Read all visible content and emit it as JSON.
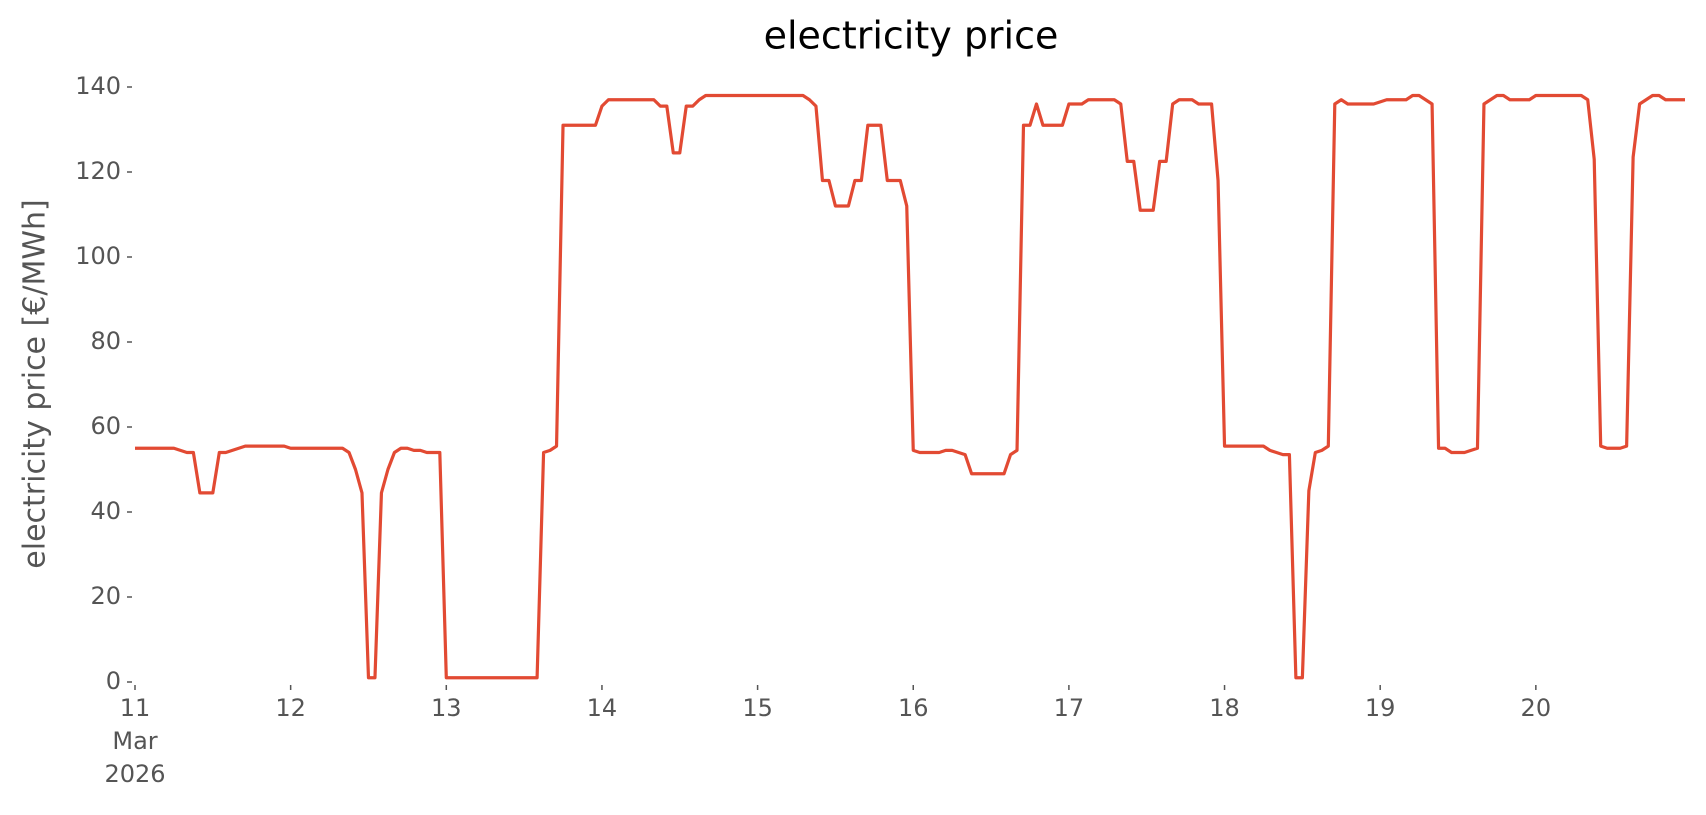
{
  "chart_data": {
    "type": "line",
    "title": "electricity price",
    "y_label": "electricity price [€/MWh]",
    "x": [
      11,
      11.0417,
      11.0833,
      11.125,
      11.1667,
      11.2083,
      11.25,
      11.2917,
      11.3333,
      11.375,
      11.4167,
      11.4583,
      11.5,
      11.5417,
      11.5833,
      11.625,
      11.6667,
      11.7083,
      11.75,
      11.7917,
      11.8333,
      11.875,
      11.9167,
      11.9583,
      12,
      12.0417,
      12.0833,
      12.125,
      12.1667,
      12.2083,
      12.25,
      12.2917,
      12.3333,
      12.375,
      12.4167,
      12.4583,
      12.5,
      12.5417,
      12.5833,
      12.625,
      12.6667,
      12.7083,
      12.75,
      12.7917,
      12.8333,
      12.875,
      12.9167,
      12.9583,
      13,
      13.0417,
      13.0833,
      13.125,
      13.1667,
      13.2083,
      13.25,
      13.2917,
      13.3333,
      13.375,
      13.4167,
      13.4583,
      13.5,
      13.5417,
      13.5833,
      13.625,
      13.6667,
      13.7083,
      13.75,
      13.7917,
      13.8333,
      13.875,
      13.9167,
      13.9583,
      14,
      14.0417,
      14.0833,
      14.125,
      14.1667,
      14.2083,
      14.25,
      14.2917,
      14.3333,
      14.375,
      14.4167,
      14.4583,
      14.5,
      14.5417,
      14.5833,
      14.625,
      14.6667,
      14.7083,
      14.75,
      14.7917,
      14.8333,
      14.875,
      14.9167,
      14.9583,
      15,
      15.0417,
      15.0833,
      15.125,
      15.1667,
      15.2083,
      15.25,
      15.2917,
      15.3333,
      15.375,
      15.4167,
      15.4583,
      15.5,
      15.5417,
      15.5833,
      15.625,
      15.6667,
      15.7083,
      15.75,
      15.7917,
      15.8333,
      15.875,
      15.9167,
      15.9583,
      16,
      16.0417,
      16.0833,
      16.125,
      16.1667,
      16.2083,
      16.25,
      16.2917,
      16.3333,
      16.375,
      16.4167,
      16.4583,
      16.5,
      16.5417,
      16.5833,
      16.625,
      16.6667,
      16.7083,
      16.75,
      16.7917,
      16.8333,
      16.875,
      16.9167,
      16.9583,
      17,
      17.0417,
      17.0833,
      17.125,
      17.1667,
      17.2083,
      17.25,
      17.2917,
      17.3333,
      17.375,
      17.4167,
      17.4583,
      17.5,
      17.5417,
      17.5833,
      17.625,
      17.6667,
      17.7083,
      17.75,
      17.7917,
      17.8333,
      17.875,
      17.9167,
      17.9583,
      18,
      18.0417,
      18.0833,
      18.125,
      18.1667,
      18.2083,
      18.25,
      18.2917,
      18.3333,
      18.375,
      18.4167,
      18.4583,
      18.5,
      18.5417,
      18.5833,
      18.625,
      18.6667,
      18.7083,
      18.75,
      18.7917,
      18.8333,
      18.875,
      18.9167,
      18.9583,
      19,
      19.0417,
      19.0833,
      19.125,
      19.1667,
      19.2083,
      19.25,
      19.2917,
      19.3333,
      19.375,
      19.4167,
      19.4583,
      19.5,
      19.5417,
      19.5833,
      19.625,
      19.6667,
      19.7083,
      19.75,
      19.7917,
      19.8333,
      19.875,
      19.9167,
      19.9583,
      20,
      20.0417,
      20.0833,
      20.125,
      20.1667,
      20.2083,
      20.25,
      20.2917,
      20.3333,
      20.375,
      20.4167,
      20.4583,
      20.5,
      20.5417,
      20.5833,
      20.625,
      20.6667,
      20.7083,
      20.75,
      20.7917,
      20.8333,
      20.875,
      20.9167,
      20.9583
    ],
    "series": [
      {
        "color": "#e24a33",
        "values": [
          55,
          55,
          55,
          55,
          55,
          55,
          55,
          54.5,
          54,
          54,
          44.5,
          44.5,
          44.5,
          54,
          54,
          54.5,
          55,
          55.5,
          55.5,
          55.5,
          55.5,
          55.5,
          55.5,
          55.5,
          55,
          55,
          55,
          55,
          55,
          55,
          55,
          55,
          55,
          54,
          50,
          44.5,
          1,
          1,
          44.5,
          50,
          54,
          55,
          55,
          54.5,
          54.5,
          54,
          54,
          54,
          1,
          1,
          1,
          1,
          1,
          1,
          1,
          1,
          1,
          1,
          1,
          1,
          1,
          1,
          1,
          54,
          54.5,
          55.5,
          131,
          131,
          131,
          131,
          131,
          131,
          135.5,
          137,
          137,
          137,
          137,
          137,
          137,
          137,
          137,
          135.5,
          135.5,
          124.5,
          124.5,
          135.5,
          135.5,
          137,
          138,
          138,
          138,
          138,
          138,
          138,
          138,
          138,
          138,
          138,
          138,
          138,
          138,
          138,
          138,
          138,
          137,
          135.5,
          118,
          118,
          112,
          112,
          112,
          118,
          118,
          131,
          131,
          131,
          118,
          118,
          118,
          112,
          54.5,
          54,
          54,
          54,
          54,
          54.5,
          54.5,
          54,
          53.5,
          49,
          49,
          49,
          49,
          49,
          49,
          53.5,
          54.5,
          131,
          131,
          136,
          131,
          131,
          131,
          131,
          136,
          136,
          136,
          137,
          137,
          137,
          137,
          137,
          136,
          122.5,
          122.5,
          111,
          111,
          111,
          122.5,
          122.5,
          136,
          137,
          137,
          137,
          136,
          136,
          136,
          118,
          55.5,
          55.5,
          55.5,
          55.5,
          55.5,
          55.5,
          55.5,
          54.5,
          54,
          53.5,
          53.5,
          1,
          1,
          45,
          54,
          54.5,
          55.5,
          136,
          137,
          136,
          136,
          136,
          136,
          136,
          136.5,
          137,
          137,
          137,
          137,
          138,
          138,
          137,
          136,
          55,
          55,
          54,
          54,
          54,
          54.5,
          55,
          136,
          137,
          138,
          138,
          137,
          137,
          137,
          137,
          138,
          138,
          138,
          138,
          138,
          138,
          138,
          138,
          137,
          123,
          55.5,
          55,
          55,
          55,
          55.5,
          123.5,
          136,
          137,
          138,
          138,
          137,
          137,
          137,
          137
        ]
      }
    ],
    "xlim": [
      11,
      20.9583
    ],
    "xticks": [
      {
        "value": 11,
        "label": "11\nMar\n2026"
      },
      12,
      13,
      14,
      15,
      16,
      17,
      18,
      19,
      20
    ],
    "ylim": [
      0,
      140
    ],
    "yticks": [
      0,
      20,
      40,
      60,
      80,
      100,
      120,
      140
    ],
    "grid": false
  }
}
